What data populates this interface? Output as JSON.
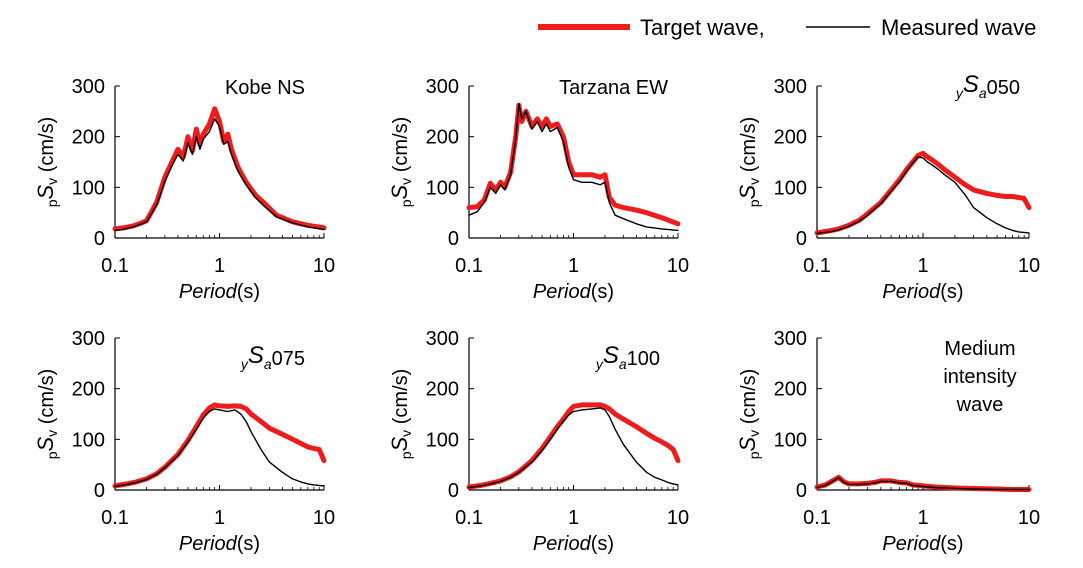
{
  "legend": {
    "target_label": "Target wave,",
    "measured_label": "Measured wave",
    "target_color": "#ee1c1c",
    "measured_color": "#000000"
  },
  "chart_data": [
    {
      "type": "line",
      "title": "Kobe NS",
      "xlabel_italic": "Period",
      "xlabel_unit": "(s)",
      "ylabel_sub": "p",
      "ylabel_main": "S",
      "ylabel_subv": "v",
      "ylabel_unit": " (cm/s)",
      "x_scale": "log",
      "xlim": [
        0.1,
        10
      ],
      "ylim": [
        0,
        300
      ],
      "x_ticks": [
        "0.1",
        "1",
        "10"
      ],
      "y_ticks": [
        "0",
        "100",
        "200",
        "300"
      ],
      "series": [
        {
          "name": "Target wave",
          "color": "#ee1c1c",
          "x": [
            0.1,
            0.12,
            0.15,
            0.18,
            0.2,
            0.25,
            0.3,
            0.35,
            0.4,
            0.45,
            0.5,
            0.55,
            0.6,
            0.65,
            0.7,
            0.8,
            0.9,
            1.0,
            1.1,
            1.2,
            1.3,
            1.5,
            1.8,
            2.2,
            2.7,
            3.5,
            5,
            7,
            10
          ],
          "y": [
            18,
            20,
            24,
            30,
            34,
            70,
            120,
            150,
            175,
            160,
            200,
            172,
            215,
            185,
            205,
            225,
            255,
            230,
            190,
            205,
            175,
            140,
            110,
            85,
            68,
            45,
            32,
            25,
            20
          ]
        },
        {
          "name": "Measured wave",
          "color": "#000000",
          "x": [
            0.1,
            0.12,
            0.15,
            0.18,
            0.2,
            0.25,
            0.3,
            0.35,
            0.4,
            0.45,
            0.5,
            0.55,
            0.6,
            0.65,
            0.7,
            0.8,
            0.9,
            1.0,
            1.1,
            1.2,
            1.3,
            1.5,
            1.8,
            2.2,
            2.7,
            3.5,
            5,
            7,
            10
          ],
          "y": [
            15,
            17,
            22,
            28,
            32,
            65,
            112,
            142,
            165,
            152,
            188,
            165,
            200,
            175,
            195,
            210,
            235,
            220,
            185,
            190,
            165,
            132,
            105,
            80,
            62,
            42,
            30,
            22,
            17
          ]
        }
      ]
    },
    {
      "type": "line",
      "title": "Tarzana EW",
      "xlabel_italic": "Period",
      "xlabel_unit": "(s)",
      "ylabel_sub": "p",
      "ylabel_main": "S",
      "ylabel_subv": "v",
      "ylabel_unit": " (cm/s)",
      "x_scale": "log",
      "xlim": [
        0.1,
        10
      ],
      "ylim": [
        0,
        300
      ],
      "x_ticks": [
        "0.1",
        "1",
        "10"
      ],
      "y_ticks": [
        "0",
        "100",
        "200",
        "300"
      ],
      "series": [
        {
          "name": "Target wave",
          "color": "#ee1c1c",
          "x": [
            0.1,
            0.12,
            0.14,
            0.16,
            0.18,
            0.2,
            0.22,
            0.25,
            0.28,
            0.3,
            0.32,
            0.35,
            0.4,
            0.45,
            0.5,
            0.55,
            0.6,
            0.7,
            0.8,
            0.9,
            1.0,
            1.2,
            1.5,
            1.8,
            2.0,
            2.2,
            2.5,
            3,
            4,
            5,
            7,
            10
          ],
          "y": [
            60,
            62,
            75,
            108,
            95,
            110,
            100,
            130,
            200,
            262,
            230,
            250,
            220,
            235,
            220,
            235,
            220,
            225,
            200,
            150,
            125,
            125,
            125,
            120,
            125,
            80,
            65,
            60,
            55,
            50,
            40,
            28
          ]
        },
        {
          "name": "Measured wave",
          "color": "#000000",
          "x": [
            0.1,
            0.12,
            0.14,
            0.16,
            0.18,
            0.2,
            0.22,
            0.25,
            0.28,
            0.3,
            0.32,
            0.35,
            0.4,
            0.45,
            0.5,
            0.55,
            0.6,
            0.7,
            0.8,
            0.9,
            1.0,
            1.2,
            1.5,
            1.8,
            2.0,
            2.2,
            2.5,
            3,
            4,
            5,
            7,
            10
          ],
          "y": [
            45,
            52,
            70,
            100,
            88,
            105,
            95,
            125,
            195,
            265,
            235,
            250,
            215,
            230,
            210,
            225,
            210,
            218,
            190,
            140,
            115,
            110,
            110,
            105,
            110,
            70,
            45,
            38,
            28,
            22,
            18,
            15
          ]
        }
      ]
    },
    {
      "type": "line",
      "title_sub": "y",
      "title_main": "S",
      "title_subb": "a",
      "title_tail": "050",
      "xlabel_italic": "Period",
      "xlabel_unit": "(s)",
      "ylabel_sub": "p",
      "ylabel_main": "S",
      "ylabel_subv": "v",
      "ylabel_unit": " (cm/s)",
      "x_scale": "log",
      "xlim": [
        0.1,
        10
      ],
      "ylim": [
        0,
        300
      ],
      "x_ticks": [
        "0.1",
        "1",
        "10"
      ],
      "y_ticks": [
        "0",
        "100",
        "200",
        "300"
      ],
      "series": [
        {
          "name": "Target wave",
          "color": "#ee1c1c",
          "x": [
            0.1,
            0.13,
            0.16,
            0.2,
            0.25,
            0.3,
            0.4,
            0.5,
            0.6,
            0.7,
            0.8,
            0.9,
            1.0,
            1.1,
            1.2,
            1.4,
            1.6,
            2.0,
            2.5,
            3,
            4,
            5,
            6,
            7,
            8,
            9,
            10
          ],
          "y": [
            10,
            14,
            18,
            25,
            35,
            48,
            70,
            95,
            115,
            135,
            150,
            163,
            167,
            160,
            155,
            145,
            135,
            120,
            105,
            95,
            88,
            84,
            82,
            82,
            80,
            78,
            60
          ]
        },
        {
          "name": "Measured wave",
          "color": "#000000",
          "x": [
            0.1,
            0.13,
            0.16,
            0.2,
            0.25,
            0.3,
            0.4,
            0.5,
            0.6,
            0.7,
            0.8,
            0.9,
            1.0,
            1.1,
            1.2,
            1.4,
            1.6,
            2.0,
            2.5,
            3,
            4,
            5,
            6,
            7,
            8,
            9,
            10
          ],
          "y": [
            9,
            12,
            16,
            23,
            33,
            45,
            68,
            92,
            112,
            132,
            148,
            160,
            158,
            150,
            145,
            135,
            125,
            110,
            85,
            60,
            40,
            28,
            20,
            15,
            12,
            11,
            10
          ]
        }
      ]
    },
    {
      "type": "line",
      "title_sub": "y",
      "title_main": "S",
      "title_subb": "a",
      "title_tail": "075",
      "xlabel_italic": "Period",
      "xlabel_unit": "(s)",
      "ylabel_sub": "p",
      "ylabel_main": "S",
      "ylabel_subv": "v",
      "ylabel_unit": " (cm/s)",
      "x_scale": "log",
      "xlim": [
        0.1,
        10
      ],
      "ylim": [
        0,
        300
      ],
      "x_ticks": [
        "0.1",
        "1",
        "10"
      ],
      "y_ticks": [
        "0",
        "100",
        "200",
        "300"
      ],
      "series": [
        {
          "name": "Target wave",
          "color": "#ee1c1c",
          "x": [
            0.1,
            0.13,
            0.16,
            0.2,
            0.25,
            0.3,
            0.4,
            0.5,
            0.6,
            0.7,
            0.8,
            0.9,
            1.0,
            1.2,
            1.4,
            1.6,
            1.8,
            2.0,
            2.5,
            3,
            4,
            5,
            6,
            7,
            8,
            9,
            10
          ],
          "y": [
            8,
            12,
            16,
            22,
            32,
            45,
            70,
            98,
            125,
            148,
            162,
            168,
            166,
            165,
            166,
            165,
            160,
            150,
            135,
            122,
            110,
            100,
            92,
            85,
            82,
            80,
            58
          ]
        },
        {
          "name": "Measured wave",
          "color": "#000000",
          "x": [
            0.1,
            0.13,
            0.16,
            0.2,
            0.25,
            0.3,
            0.4,
            0.5,
            0.6,
            0.7,
            0.8,
            0.9,
            1.0,
            1.2,
            1.4,
            1.6,
            1.8,
            2.0,
            2.5,
            3,
            4,
            5,
            6,
            7,
            8,
            9,
            10
          ],
          "y": [
            7,
            11,
            15,
            21,
            31,
            44,
            68,
            95,
            120,
            142,
            155,
            160,
            158,
            155,
            158,
            150,
            135,
            115,
            80,
            55,
            35,
            22,
            16,
            12,
            10,
            9,
            8
          ]
        }
      ]
    },
    {
      "type": "line",
      "title_sub": "y",
      "title_main": "S",
      "title_subb": "a",
      "title_tail": "100",
      "xlabel_italic": "Period",
      "xlabel_unit": "(s)",
      "ylabel_sub": "p",
      "ylabel_main": "S",
      "ylabel_subv": "v",
      "ylabel_unit": " (cm/s)",
      "x_scale": "log",
      "xlim": [
        0.1,
        10
      ],
      "ylim": [
        0,
        300
      ],
      "x_ticks": [
        "0.1",
        "1",
        "10"
      ],
      "y_ticks": [
        "0",
        "100",
        "200",
        "300"
      ],
      "series": [
        {
          "name": "Target wave",
          "color": "#ee1c1c",
          "x": [
            0.1,
            0.13,
            0.16,
            0.2,
            0.25,
            0.3,
            0.4,
            0.5,
            0.6,
            0.7,
            0.8,
            0.9,
            1.0,
            1.2,
            1.5,
            1.8,
            2.0,
            2.2,
            2.5,
            3,
            4,
            5,
            6,
            7,
            8,
            9,
            10
          ],
          "y": [
            6,
            9,
            13,
            18,
            26,
            36,
            58,
            82,
            105,
            125,
            140,
            155,
            165,
            168,
            168,
            168,
            165,
            160,
            150,
            140,
            125,
            112,
            102,
            95,
            88,
            80,
            58
          ]
        },
        {
          "name": "Measured wave",
          "color": "#000000",
          "x": [
            0.1,
            0.13,
            0.16,
            0.2,
            0.25,
            0.3,
            0.4,
            0.5,
            0.6,
            0.7,
            0.8,
            0.9,
            1.0,
            1.2,
            1.5,
            1.8,
            2.0,
            2.2,
            2.5,
            3,
            4,
            5,
            6,
            7,
            8,
            9,
            10
          ],
          "y": [
            5,
            8,
            12,
            17,
            25,
            35,
            55,
            78,
            100,
            120,
            135,
            148,
            155,
            158,
            160,
            162,
            158,
            145,
            120,
            90,
            55,
            35,
            25,
            20,
            15,
            12,
            10
          ]
        }
      ]
    },
    {
      "type": "line",
      "title_lines": [
        "Medium",
        "intensity",
        "wave"
      ],
      "xlabel_italic": "Period",
      "xlabel_unit": "(s)",
      "ylabel_sub": "p",
      "ylabel_main": "S",
      "ylabel_subv": "v",
      "ylabel_unit": " (cm/s)",
      "x_scale": "log",
      "xlim": [
        0.1,
        10
      ],
      "ylim": [
        0,
        300
      ],
      "x_ticks": [
        "0.1",
        "1",
        "10"
      ],
      "y_ticks": [
        "0",
        "100",
        "200",
        "300"
      ],
      "series": [
        {
          "name": "Target wave",
          "color": "#ee1c1c",
          "x": [
            0.1,
            0.12,
            0.14,
            0.16,
            0.18,
            0.2,
            0.25,
            0.3,
            0.35,
            0.4,
            0.5,
            0.6,
            0.7,
            0.8,
            1.0,
            1.3,
            1.6,
            2.0,
            3,
            5,
            7,
            10
          ],
          "y": [
            6,
            10,
            18,
            25,
            16,
            12,
            12,
            13,
            15,
            18,
            18,
            15,
            14,
            10,
            8,
            6,
            5,
            4,
            3,
            2,
            1,
            1
          ]
        },
        {
          "name": "Measured wave",
          "color": "#000000",
          "x": [
            0.1,
            0.12,
            0.14,
            0.16,
            0.18,
            0.2,
            0.25,
            0.3,
            0.35,
            0.4,
            0.5,
            0.6,
            0.7,
            0.8,
            1.0,
            1.3,
            1.6,
            2.0,
            3,
            5,
            7,
            10
          ],
          "y": [
            5,
            9,
            17,
            24,
            15,
            11,
            11,
            12,
            14,
            17,
            17,
            14,
            13,
            9,
            7,
            5,
            4,
            3,
            2,
            1,
            1,
            1
          ]
        }
      ]
    }
  ]
}
